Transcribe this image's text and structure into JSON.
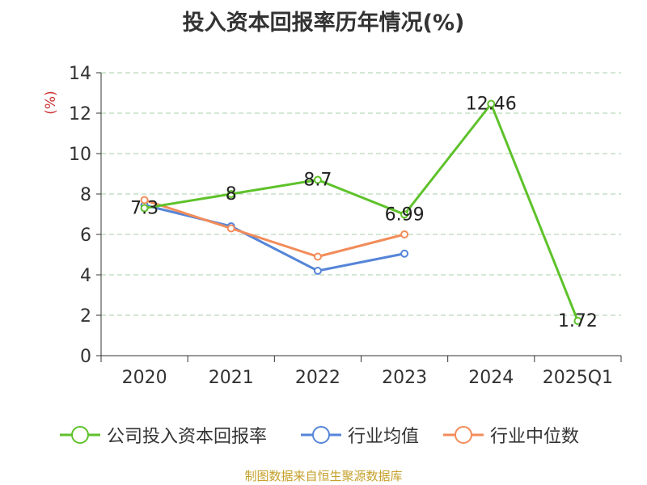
{
  "chart_data": {
    "type": "line",
    "title": "投入资本回报率历年情况(%)",
    "ylabel": "(%)",
    "categories": [
      "2020",
      "2021",
      "2022",
      "2023",
      "2024",
      "2025Q1"
    ],
    "yticks": [
      "0",
      "2",
      "4",
      "6",
      "8",
      "10",
      "12",
      "14"
    ],
    "ylim": [
      0,
      14
    ],
    "grid": true,
    "legend_position": "bottom",
    "series": [
      {
        "name": "公司投入资本回报率",
        "color": "#5ec22b",
        "values": [
          7.3,
          8,
          8.7,
          6.99,
          12.46,
          1.72
        ],
        "labels": [
          "7.3",
          "8",
          "8.7",
          "6.99",
          "12.46",
          "1.72"
        ]
      },
      {
        "name": "行业均值",
        "color": "#5585d8",
        "values": [
          7.45,
          6.4,
          4.2,
          5.05,
          null,
          null
        ]
      },
      {
        "name": "行业中位数",
        "color": "#f28c5a",
        "values": [
          7.7,
          6.3,
          4.9,
          6.0,
          null,
          null
        ]
      }
    ]
  },
  "source_note": "制图数据来自恒生聚源数据库"
}
